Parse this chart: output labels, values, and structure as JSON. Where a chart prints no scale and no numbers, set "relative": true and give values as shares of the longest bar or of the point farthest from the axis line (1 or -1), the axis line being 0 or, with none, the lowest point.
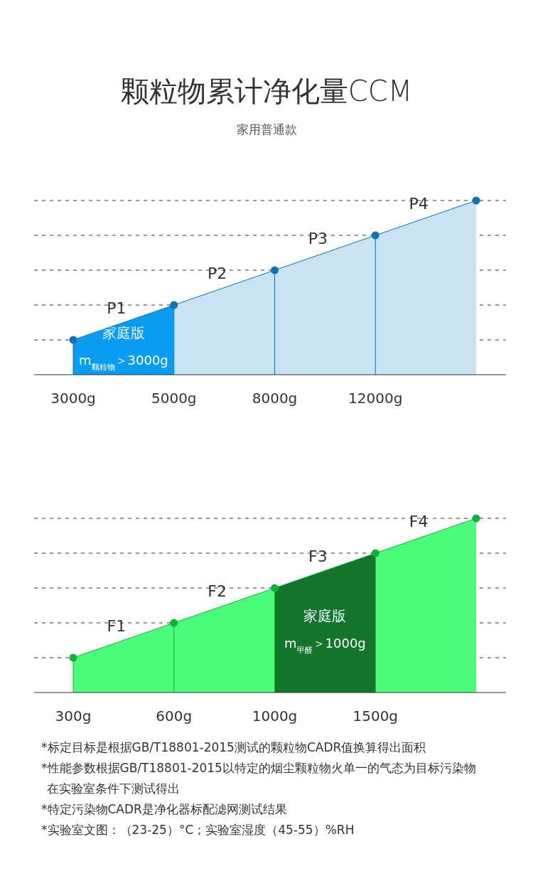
{
  "chart_data": [
    {
      "type": "area",
      "title": "颗粒物累计净化量CCM",
      "subtitle": "家用普通款",
      "categories": [
        "3000g",
        "5000g",
        "8000g",
        "12000g",
        null
      ],
      "relative": true,
      "grid": "y",
      "marker": "circle",
      "series": [
        {
          "color": "#c9e3f3",
          "values": [
            0.2,
            0.4,
            0.6,
            0.8,
            1.0
          ]
        },
        {
          "color": "#0a9cf0",
          "marker": "none",
          "values": [
            0.2,
            0.4,
            null,
            null,
            null
          ]
        }
      ],
      "ref_lines": [
        {
          "axis": "x",
          "value": "3000g"
        },
        {
          "axis": "x",
          "value": "5000g"
        },
        {
          "axis": "x",
          "value": "8000g"
        },
        {
          "axis": "x",
          "value": "12000g"
        }
      ],
      "annotations": [
        "P1",
        "P2",
        "P3",
        "P4",
        "家庭版",
        "m$_{颗粒物}$＞3000g"
      ]
    },
    {
      "type": "area",
      "categories": [
        "300g",
        "600g",
        "1000g",
        "1500g",
        null
      ],
      "relative": true,
      "grid": "y",
      "marker": "circle",
      "series": [
        {
          "color": "#4cfc7a",
          "values": [
            0.2,
            0.4,
            0.6,
            0.8,
            1.0
          ]
        },
        {
          "color": "#16752c",
          "marker": "none",
          "values": [
            null,
            null,
            0.6,
            0.8,
            null
          ]
        }
      ],
      "ref_lines": [
        {
          "axis": "x",
          "value": "300g"
        },
        {
          "axis": "x",
          "value": "600g"
        },
        {
          "axis": "x",
          "value": "1000g"
        },
        {
          "axis": "x",
          "value": "1500g"
        }
      ],
      "annotations": [
        "F1",
        "F2",
        "F3",
        "F4",
        "家庭版",
        "m$_{甲醛}$＞1000g",
        "*标定目标是根据GB/T18801-2015测试的颗粒物CADR值换算得出面积",
        "*性能参数根据GB/T18801-2015以特定的烟尘颗粒物火单一的气态为目标污染物在实验室条件下测试得出",
        "*特定污染物CADR是净化器标配滤网测试结果",
        "*实验室文图：（23-25）°C；实验室湿度（45-55）%RH"
      ]
    }
  ]
}
